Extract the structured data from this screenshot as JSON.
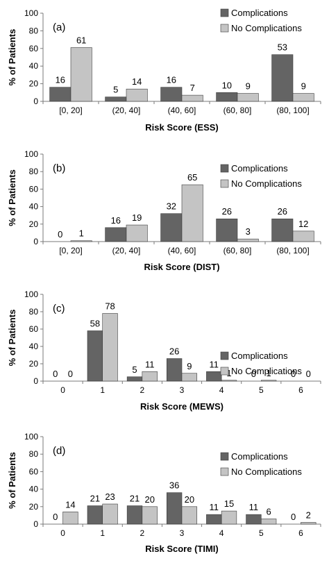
{
  "colors": {
    "complications": "#646464",
    "no_complications": "#c4c4c4",
    "bar_stroke": "#3a3a3a",
    "axis": "#7a7a7a"
  },
  "chart_data": [
    {
      "type": "bar",
      "panel_label": "(a)",
      "xlabel": "Risk Score (ESS)",
      "ylabel": "% of Patients",
      "ylim": [
        0,
        100
      ],
      "yticks": [
        0,
        20,
        40,
        60,
        80,
        100
      ],
      "categories": [
        "[0, 20]",
        "(20, 40]",
        "(40, 60]",
        "(60, 80]",
        "(80, 100]"
      ],
      "series": [
        {
          "name": "Complications",
          "values": [
            16,
            5,
            16,
            10,
            53
          ]
        },
        {
          "name": "No Complications",
          "values": [
            61,
            14,
            7,
            9,
            9
          ]
        }
      ],
      "legend": "top-right",
      "grid": false
    },
    {
      "type": "bar",
      "panel_label": "(b)",
      "xlabel": "Risk Score (DIST)",
      "ylabel": "% of Patients",
      "ylim": [
        0,
        100
      ],
      "yticks": [
        0,
        20,
        40,
        60,
        80,
        100
      ],
      "categories": [
        "[0, 20]",
        "(20, 40]",
        "(40, 60]",
        "(60, 80]",
        "(80, 100]"
      ],
      "series": [
        {
          "name": "Complications",
          "values": [
            0,
            16,
            32,
            26,
            26
          ]
        },
        {
          "name": "No Complications",
          "values": [
            1,
            19,
            65,
            3,
            12
          ]
        }
      ],
      "legend": "top-right",
      "grid": false
    },
    {
      "type": "bar",
      "panel_label": "(c)",
      "xlabel": "Risk Score (MEWS)",
      "ylabel": "% of Patients",
      "ylim": [
        0,
        100
      ],
      "yticks": [
        0,
        20,
        40,
        60,
        80,
        100
      ],
      "categories": [
        "0",
        "1",
        "2",
        "3",
        "4",
        "5",
        "6"
      ],
      "series": [
        {
          "name": "Complications",
          "values": [
            0,
            58,
            5,
            26,
            11,
            0,
            0
          ]
        },
        {
          "name": "No Complications",
          "values": [
            0,
            78,
            11,
            9,
            1,
            1,
            0
          ]
        }
      ],
      "legend": "top-right",
      "grid": false
    },
    {
      "type": "bar",
      "panel_label": "(d)",
      "xlabel": "Risk Score (TIMI)",
      "ylabel": "% of Patients",
      "ylim": [
        0,
        100
      ],
      "yticks": [
        0,
        20,
        40,
        60,
        80,
        100
      ],
      "categories": [
        "0",
        "1",
        "2",
        "3",
        "4",
        "5",
        "6"
      ],
      "series": [
        {
          "name": "Complications",
          "values": [
            0,
            21,
            21,
            36,
            11,
            11,
            0
          ]
        },
        {
          "name": "No Complications",
          "values": [
            14,
            23,
            20,
            20,
            15,
            6,
            2
          ]
        }
      ],
      "legend": "top-right",
      "grid": false
    }
  ]
}
